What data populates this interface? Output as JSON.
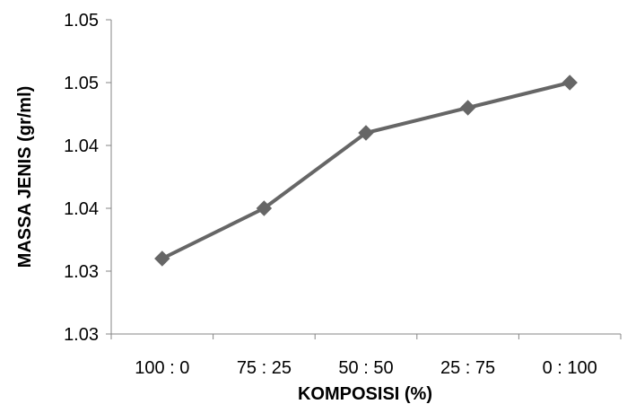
{
  "chart_data": {
    "type": "line",
    "title": "",
    "xlabel": "KOMPOSISI (%)",
    "ylabel": "MASSA JENIS (gr/ml)",
    "categories": [
      "100 : 0",
      "75 : 25",
      "50 : 50",
      "25 : 75",
      "0 : 100"
    ],
    "series": [
      {
        "values": [
          1.0335,
          1.0375,
          1.0435,
          1.0455,
          1.0475
        ],
        "color": "#666666"
      }
    ],
    "ylim": [
      1.0275,
      1.0525
    ],
    "yticks": [
      1.0275,
      1.0325,
      1.0375,
      1.0425,
      1.0475,
      1.0525
    ],
    "ytick_labels": [
      "1.03",
      "1.03",
      "1.04",
      "1.04",
      "1.05",
      "1.05"
    ],
    "grid": false,
    "legend": "none",
    "marker": "diamond"
  }
}
